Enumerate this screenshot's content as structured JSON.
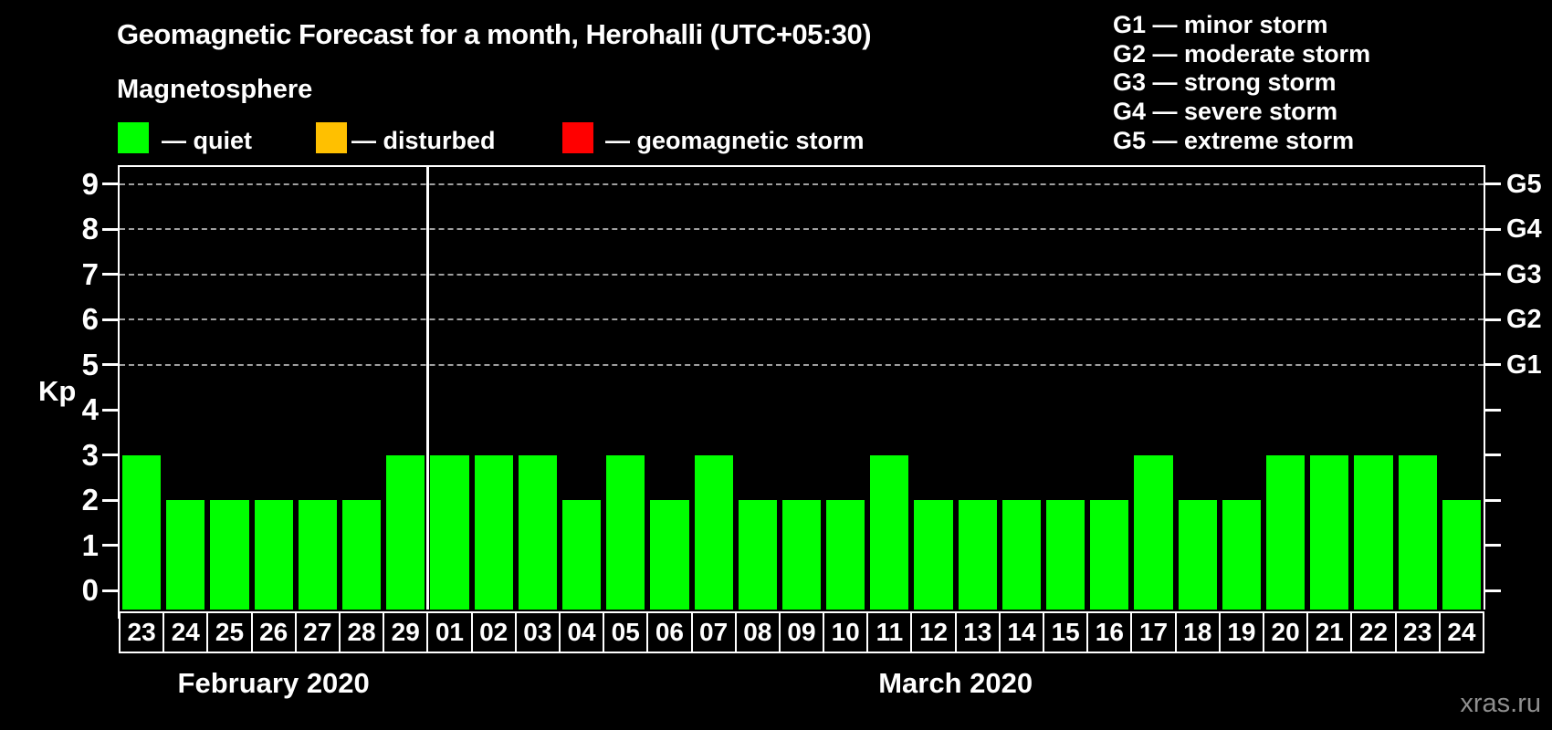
{
  "title": "Geomagnetic Forecast for a month, Herohalli (UTC+05:30)",
  "subtitle": "Magnetosphere",
  "legend": {
    "items": [
      {
        "key": "quiet",
        "label": "— quiet",
        "color": "#00FF00"
      },
      {
        "key": "disturbed",
        "label": "— disturbed",
        "color": "#FFC000"
      },
      {
        "key": "storm",
        "label": "— geomagnetic storm",
        "color": "#FF0000"
      }
    ]
  },
  "legend_g": {
    "lines": [
      "G1 — minor storm",
      "G2 — moderate storm",
      "G3 — strong storm",
      "G4 — severe storm",
      "G5 — extreme storm"
    ]
  },
  "watermark": "xras.ru",
  "chart_data": {
    "type": "bar",
    "title": "Geomagnetic Forecast for a month, Herohalli (UTC+05:30)",
    "xlabel": "",
    "ylabel": "Kp",
    "ylim": [
      0,
      9
    ],
    "yticks": [
      0,
      1,
      2,
      3,
      4,
      5,
      6,
      7,
      8,
      9
    ],
    "gridlines_at": [
      5,
      6,
      7,
      8,
      9
    ],
    "grid": "dashed, only at storm levels G1-G5",
    "legend_position": "top",
    "right_axis": [
      {
        "kp": 5,
        "label": "G1"
      },
      {
        "kp": 6,
        "label": "G2"
      },
      {
        "kp": 7,
        "label": "G3"
      },
      {
        "kp": 8,
        "label": "G4"
      },
      {
        "kp": 9,
        "label": "G5"
      }
    ],
    "bar_colors": {
      "quiet": "#00FF00",
      "disturbed": "#FFC000",
      "storm": "#FF0000"
    },
    "months": [
      {
        "label": "February 2020",
        "days": [
          "23",
          "24",
          "25",
          "26",
          "27",
          "28",
          "29"
        ],
        "kp_values": [
          3,
          2,
          2,
          2,
          2,
          2,
          3
        ]
      },
      {
        "label": "March 2020",
        "days": [
          "01",
          "02",
          "03",
          "04",
          "05",
          "06",
          "07",
          "08",
          "09",
          "10",
          "11",
          "12",
          "13",
          "14",
          "15",
          "16",
          "17",
          "18",
          "19",
          "20",
          "21",
          "22",
          "23",
          "24"
        ],
        "kp_values": [
          3,
          3,
          3,
          2,
          3,
          2,
          3,
          2,
          2,
          2,
          3,
          2,
          2,
          2,
          2,
          2,
          3,
          2,
          2,
          3,
          3,
          3,
          3,
          2
        ]
      }
    ]
  }
}
